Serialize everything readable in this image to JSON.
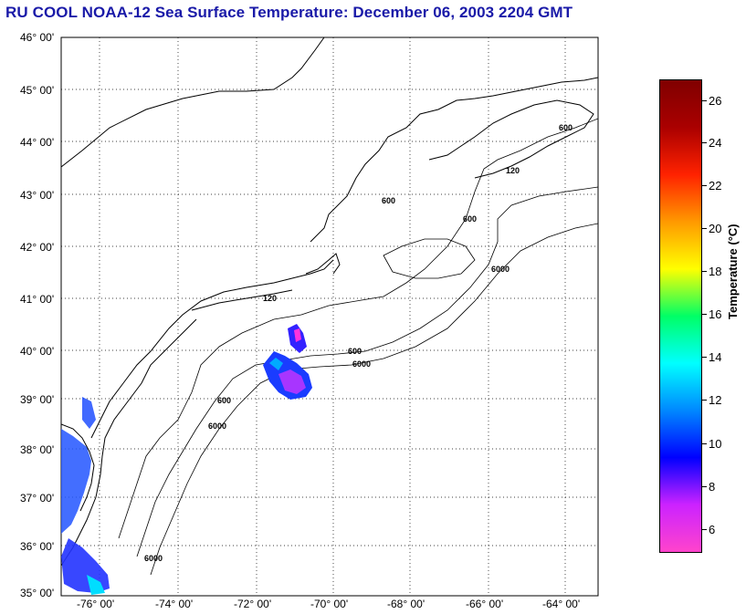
{
  "title": "RU COOL  NOAA-12  Sea Surface Temperature:  December 06, 2003 2204 GMT",
  "map": {
    "lat_labels": [
      "46° 00'",
      "45° 00'",
      "44° 00'",
      "43° 00'",
      "42° 00'",
      "41° 00'",
      "40° 00'",
      "39° 00'",
      "38° 00'",
      "37° 00'",
      "36° 00'",
      "35° 00'"
    ],
    "lon_labels": [
      "-76° 00'",
      "-74° 00'",
      "-72° 00'",
      "-70° 00'",
      "-68° 00'",
      "-66° 00'",
      "-64° 00'"
    ],
    "lat_range": [
      35,
      46
    ],
    "lon_range": [
      -77,
      -64.3
    ],
    "isobath_labels": [
      "120",
      "600",
      "6000"
    ],
    "colors": {
      "land_outline": "#000000",
      "grid": "#000000"
    }
  },
  "colorbar": {
    "label": "Temperature (°C)",
    "ticks": [
      "26",
      "24",
      "22",
      "20",
      "18",
      "16",
      "14",
      "12",
      "10",
      "8",
      "6"
    ],
    "range": [
      5,
      27
    ],
    "colors": [
      "#ff44cc",
      "#cc22ff",
      "#0000ff",
      "#0088ff",
      "#00ffff",
      "#00ff66",
      "#ffff00",
      "#ff9900",
      "#ff2200",
      "#aa0000",
      "#800000"
    ]
  }
}
